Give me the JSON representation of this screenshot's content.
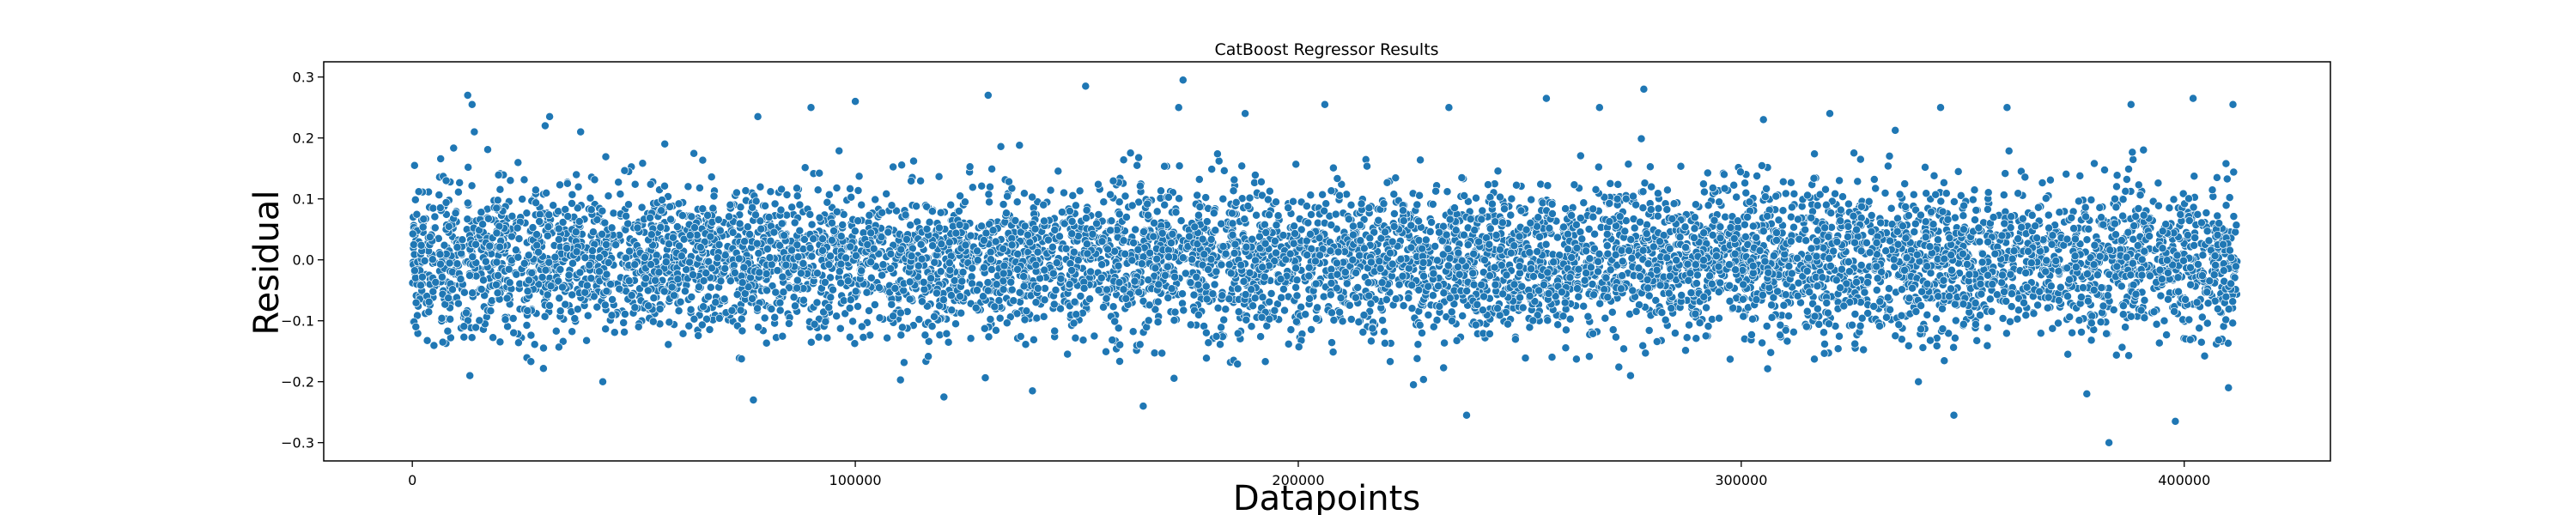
{
  "chart_data": {
    "type": "scatter",
    "title": "CatBoost Regressor Results",
    "xlabel": "Datapoints",
    "ylabel": "Residual",
    "xlim": [
      -20000,
      433000
    ],
    "ylim": [
      -0.33,
      0.325
    ],
    "xticks": [
      0,
      100000,
      200000,
      300000,
      400000
    ],
    "xtick_labels": [
      "0",
      "100000",
      "200000",
      "300000",
      "400000"
    ],
    "yticks": [
      -0.3,
      -0.2,
      -0.1,
      0.0,
      0.1,
      0.2,
      0.3
    ],
    "ytick_labels": [
      "−0.3",
      "−0.2",
      "−0.1",
      "0.0",
      "0.1",
      "0.2",
      "0.3"
    ],
    "grid": false,
    "legend": "none",
    "marker_color": "#1f77b4",
    "marker_edge_color": "#ffffff",
    "x_range_of_points": [
      0,
      412000
    ],
    "residual_spread_std": 0.06,
    "points": [
      {
        "x": 500,
        "y": 0.155
      },
      {
        "x": 800,
        "y": -0.11
      },
      {
        "x": 12500,
        "y": 0.27
      },
      {
        "x": 13500,
        "y": 0.255
      },
      {
        "x": 14000,
        "y": 0.21
      },
      {
        "x": 13000,
        "y": -0.19
      },
      {
        "x": 31000,
        "y": 0.235
      },
      {
        "x": 30000,
        "y": 0.22
      },
      {
        "x": 38000,
        "y": 0.21
      },
      {
        "x": 43000,
        "y": -0.2
      },
      {
        "x": 57000,
        "y": 0.19
      },
      {
        "x": 77000,
        "y": -0.23
      },
      {
        "x": 78000,
        "y": 0.235
      },
      {
        "x": 90000,
        "y": 0.25
      },
      {
        "x": 100000,
        "y": 0.26
      },
      {
        "x": 120000,
        "y": -0.225
      },
      {
        "x": 130000,
        "y": 0.27
      },
      {
        "x": 140000,
        "y": -0.215
      },
      {
        "x": 152000,
        "y": 0.285
      },
      {
        "x": 165000,
        "y": -0.24
      },
      {
        "x": 174000,
        "y": 0.295
      },
      {
        "x": 173000,
        "y": 0.25
      },
      {
        "x": 188000,
        "y": 0.24
      },
      {
        "x": 206000,
        "y": 0.255
      },
      {
        "x": 226000,
        "y": -0.205
      },
      {
        "x": 234000,
        "y": 0.25
      },
      {
        "x": 238000,
        "y": -0.255
      },
      {
        "x": 256000,
        "y": 0.265
      },
      {
        "x": 268000,
        "y": 0.25
      },
      {
        "x": 278000,
        "y": 0.28
      },
      {
        "x": 275000,
        "y": -0.19
      },
      {
        "x": 305000,
        "y": 0.23
      },
      {
        "x": 320000,
        "y": 0.24
      },
      {
        "x": 345000,
        "y": 0.25
      },
      {
        "x": 340000,
        "y": -0.2
      },
      {
        "x": 348000,
        "y": -0.255
      },
      {
        "x": 360000,
        "y": 0.25
      },
      {
        "x": 378000,
        "y": -0.22
      },
      {
        "x": 383000,
        "y": -0.3
      },
      {
        "x": 388000,
        "y": 0.255
      },
      {
        "x": 398000,
        "y": -0.265
      },
      {
        "x": 402000,
        "y": 0.265
      },
      {
        "x": 411000,
        "y": 0.255
      },
      {
        "x": 410000,
        "y": -0.21
      }
    ]
  }
}
